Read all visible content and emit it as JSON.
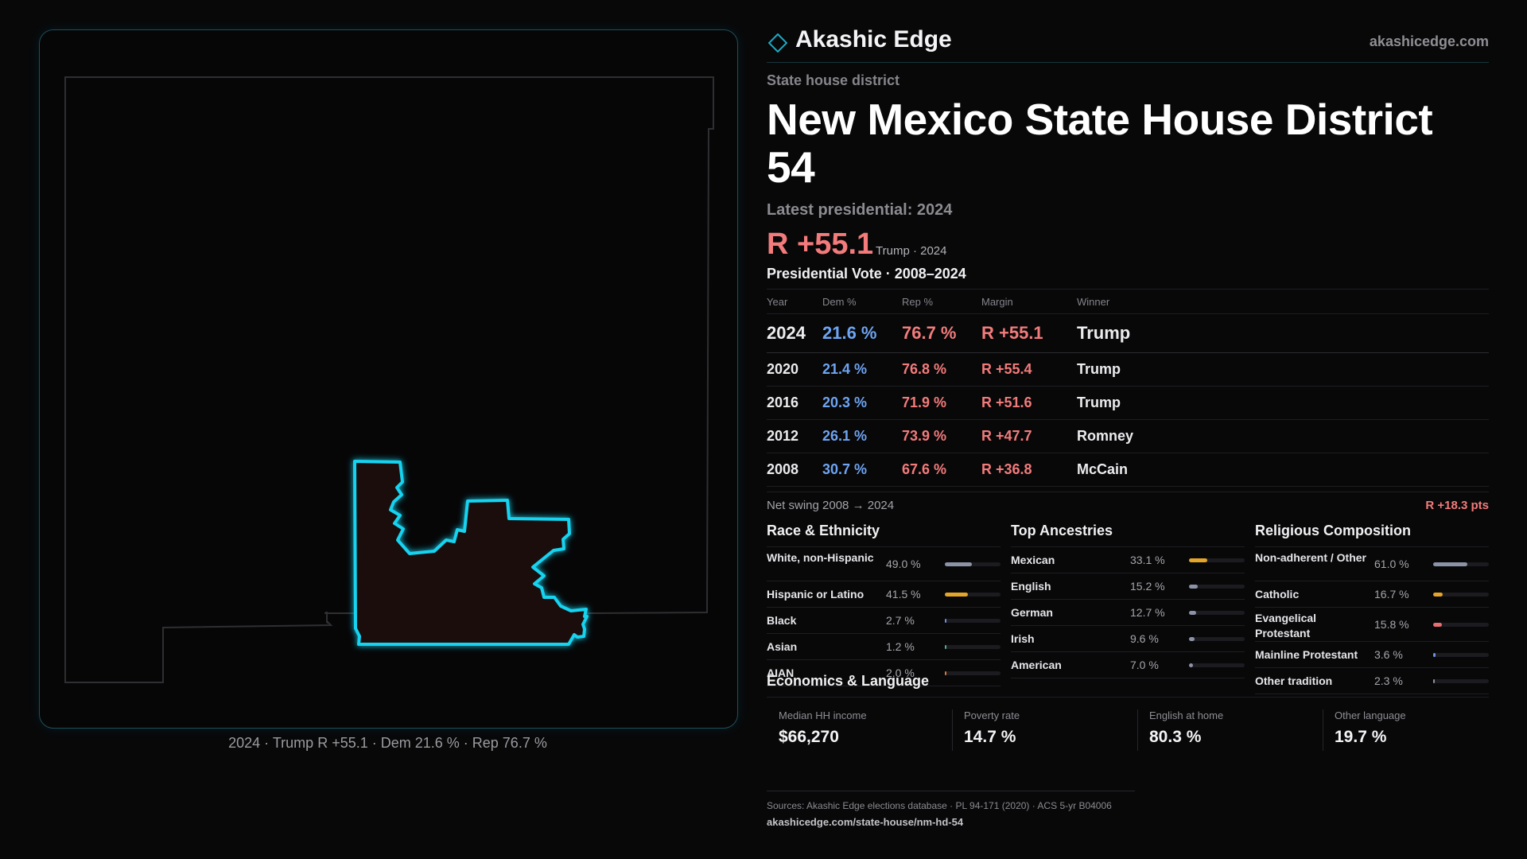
{
  "brand": {
    "name": "Akashic Edge",
    "url": "akashicedge.com"
  },
  "district": {
    "kicker": "State house district",
    "title": "New Mexico State House District 54"
  },
  "latest": {
    "label": "Latest presidential: 2024",
    "margin": "R +55.1",
    "margin_sub": "Trump · 2024"
  },
  "presidential": {
    "title": "Presidential Vote · 2008–2024",
    "headers": [
      "Year",
      "Dem %",
      "Rep %",
      "Margin",
      "Winner"
    ],
    "rows": [
      [
        "2024",
        "21.6 %",
        "76.7 %",
        "R +55.1",
        "Trump"
      ],
      [
        "2020",
        "21.4 %",
        "76.8 %",
        "R +55.4",
        "Trump"
      ],
      [
        "2016",
        "20.3 %",
        "71.9 %",
        "R +51.6",
        "Trump"
      ],
      [
        "2012",
        "26.1 %",
        "73.9 %",
        "R +47.7",
        "Romney"
      ],
      [
        "2008",
        "30.7 %",
        "67.6 %",
        "R +36.8",
        "McCain"
      ]
    ],
    "swing_label": "Net swing 2008 → 2024",
    "swing_value": "R +18.3 pts"
  },
  "race": {
    "title": "Race & Ethnicity",
    "items": [
      {
        "label": "White, non-Hispanic",
        "value": "49.0 %",
        "pct": 49.0,
        "color": "#8d93a6"
      },
      {
        "label": "Hispanic or Latino",
        "value": "41.5 %",
        "pct": 41.5,
        "color": "#e3a52a"
      },
      {
        "label": "Black",
        "value": "2.7 %",
        "pct": 2.7,
        "color": "#6f8fe0"
      },
      {
        "label": "Asian",
        "value": "1.2 %",
        "pct": 1.2,
        "color": "#4fb28a"
      },
      {
        "label": "AIAN",
        "value": "2.0 %",
        "pct": 2.0,
        "color": "#d97a3a"
      }
    ]
  },
  "ancestry": {
    "title": "Top Ancestries",
    "items": [
      {
        "label": "Mexican",
        "value": "33.1 %",
        "pct": 33.1,
        "color": "#e3a52a"
      },
      {
        "label": "English",
        "value": "15.2 %",
        "pct": 15.2,
        "color": "#8d93a6"
      },
      {
        "label": "German",
        "value": "12.7 %",
        "pct": 12.7,
        "color": "#8d93a6"
      },
      {
        "label": "Irish",
        "value": "9.6 %",
        "pct": 9.6,
        "color": "#8d93a6"
      },
      {
        "label": "American",
        "value": "7.0 %",
        "pct": 7.0,
        "color": "#8d93a6"
      }
    ]
  },
  "religion": {
    "title": "Religious Composition",
    "items": [
      {
        "label": "Non-adherent / Other",
        "value": "61.0 %",
        "pct": 61.0,
        "color": "#8d93a6"
      },
      {
        "label": "Catholic",
        "value": "16.7 %",
        "pct": 16.7,
        "color": "#e3a52a"
      },
      {
        "label": "Evangelical Protestant",
        "value": "15.8 %",
        "pct": 15.8,
        "color": "#e86f6f"
      },
      {
        "label": "Mainline Protestant",
        "value": "3.6 %",
        "pct": 3.6,
        "color": "#6f8fe0"
      },
      {
        "label": "Other tradition",
        "value": "2.3 %",
        "pct": 2.3,
        "color": "#8d93a6"
      }
    ]
  },
  "economics": {
    "title": "Economics & Language",
    "items": [
      {
        "label": "Median HH income",
        "value": "$66,270"
      },
      {
        "label": "Poverty rate",
        "value": "14.7 %"
      },
      {
        "label": "English at home",
        "value": "80.3 %"
      },
      {
        "label": "Other language",
        "value": "19.7 %"
      }
    ]
  },
  "map": {
    "caption": "2024 · Trump R +55.1 · Dem 21.6 % · Rep 76.7 %",
    "district_color": "#19d3f0"
  },
  "sources": {
    "text": "Sources: Akashic Edge elections database · PL 94-171 (2020) · ACS 5-yr B04006",
    "url": "akashicedge.com/state-house/nm-hd-54"
  }
}
